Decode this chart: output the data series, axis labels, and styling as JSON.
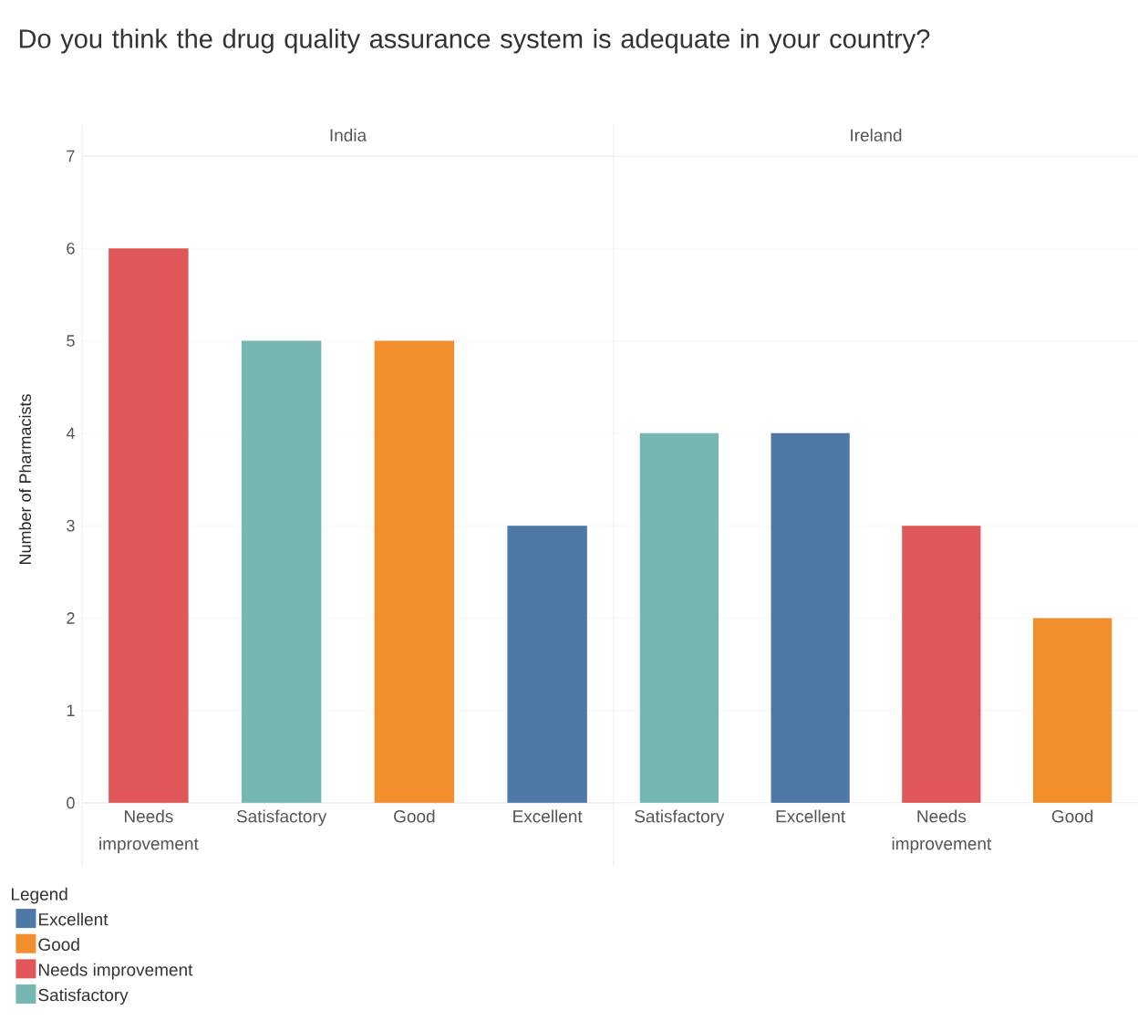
{
  "chart_data": [
    {
      "type": "bar",
      "title": "Do you think the drug quality assurance system is adequate in your country?",
      "subtitle": "India",
      "ylabel": "Number of Pharmacists",
      "categories": [
        "Needs improvement",
        "Satisfactory",
        "Good",
        "Excellent"
      ],
      "series": [
        {
          "name": "Excellent",
          "color": "#4e79a7",
          "values": [
            null,
            null,
            null,
            3
          ]
        },
        {
          "name": "Good",
          "color": "#f28e2b",
          "values": [
            null,
            null,
            5,
            null
          ]
        },
        {
          "name": "Needs improvement",
          "color": "#e15759",
          "values": [
            6,
            null,
            null,
            null
          ]
        },
        {
          "name": "Satisfactory",
          "color": "#76b7b2",
          "values": [
            null,
            5,
            null,
            null
          ]
        }
      ],
      "ylim": [
        0,
        7
      ],
      "yticks": [
        0,
        1,
        2,
        3,
        4,
        5,
        6,
        7
      ],
      "grid": "y",
      "legend": "bottom left",
      "legend_title": "Legend"
    },
    {
      "type": "bar",
      "subtitle": "Ireland",
      "categories": [
        "Satisfactory",
        "Excellent",
        "Needs improvement",
        "Good"
      ],
      "series": [
        {
          "color": "#4e79a7",
          "values": [
            null,
            4,
            null,
            null
          ]
        },
        {
          "color": "#f28e2b",
          "values": [
            null,
            null,
            null,
            2
          ]
        },
        {
          "color": "#e15759",
          "values": [
            null,
            null,
            3,
            null
          ]
        },
        {
          "color": "#76b7b2",
          "values": [
            4,
            null,
            null,
            null
          ]
        }
      ],
      "ylim": [
        0,
        7
      ],
      "yticks": [
        0,
        1,
        2,
        3,
        4,
        5,
        6,
        7
      ],
      "grid": "y",
      "tick_labels": "x"
    }
  ]
}
